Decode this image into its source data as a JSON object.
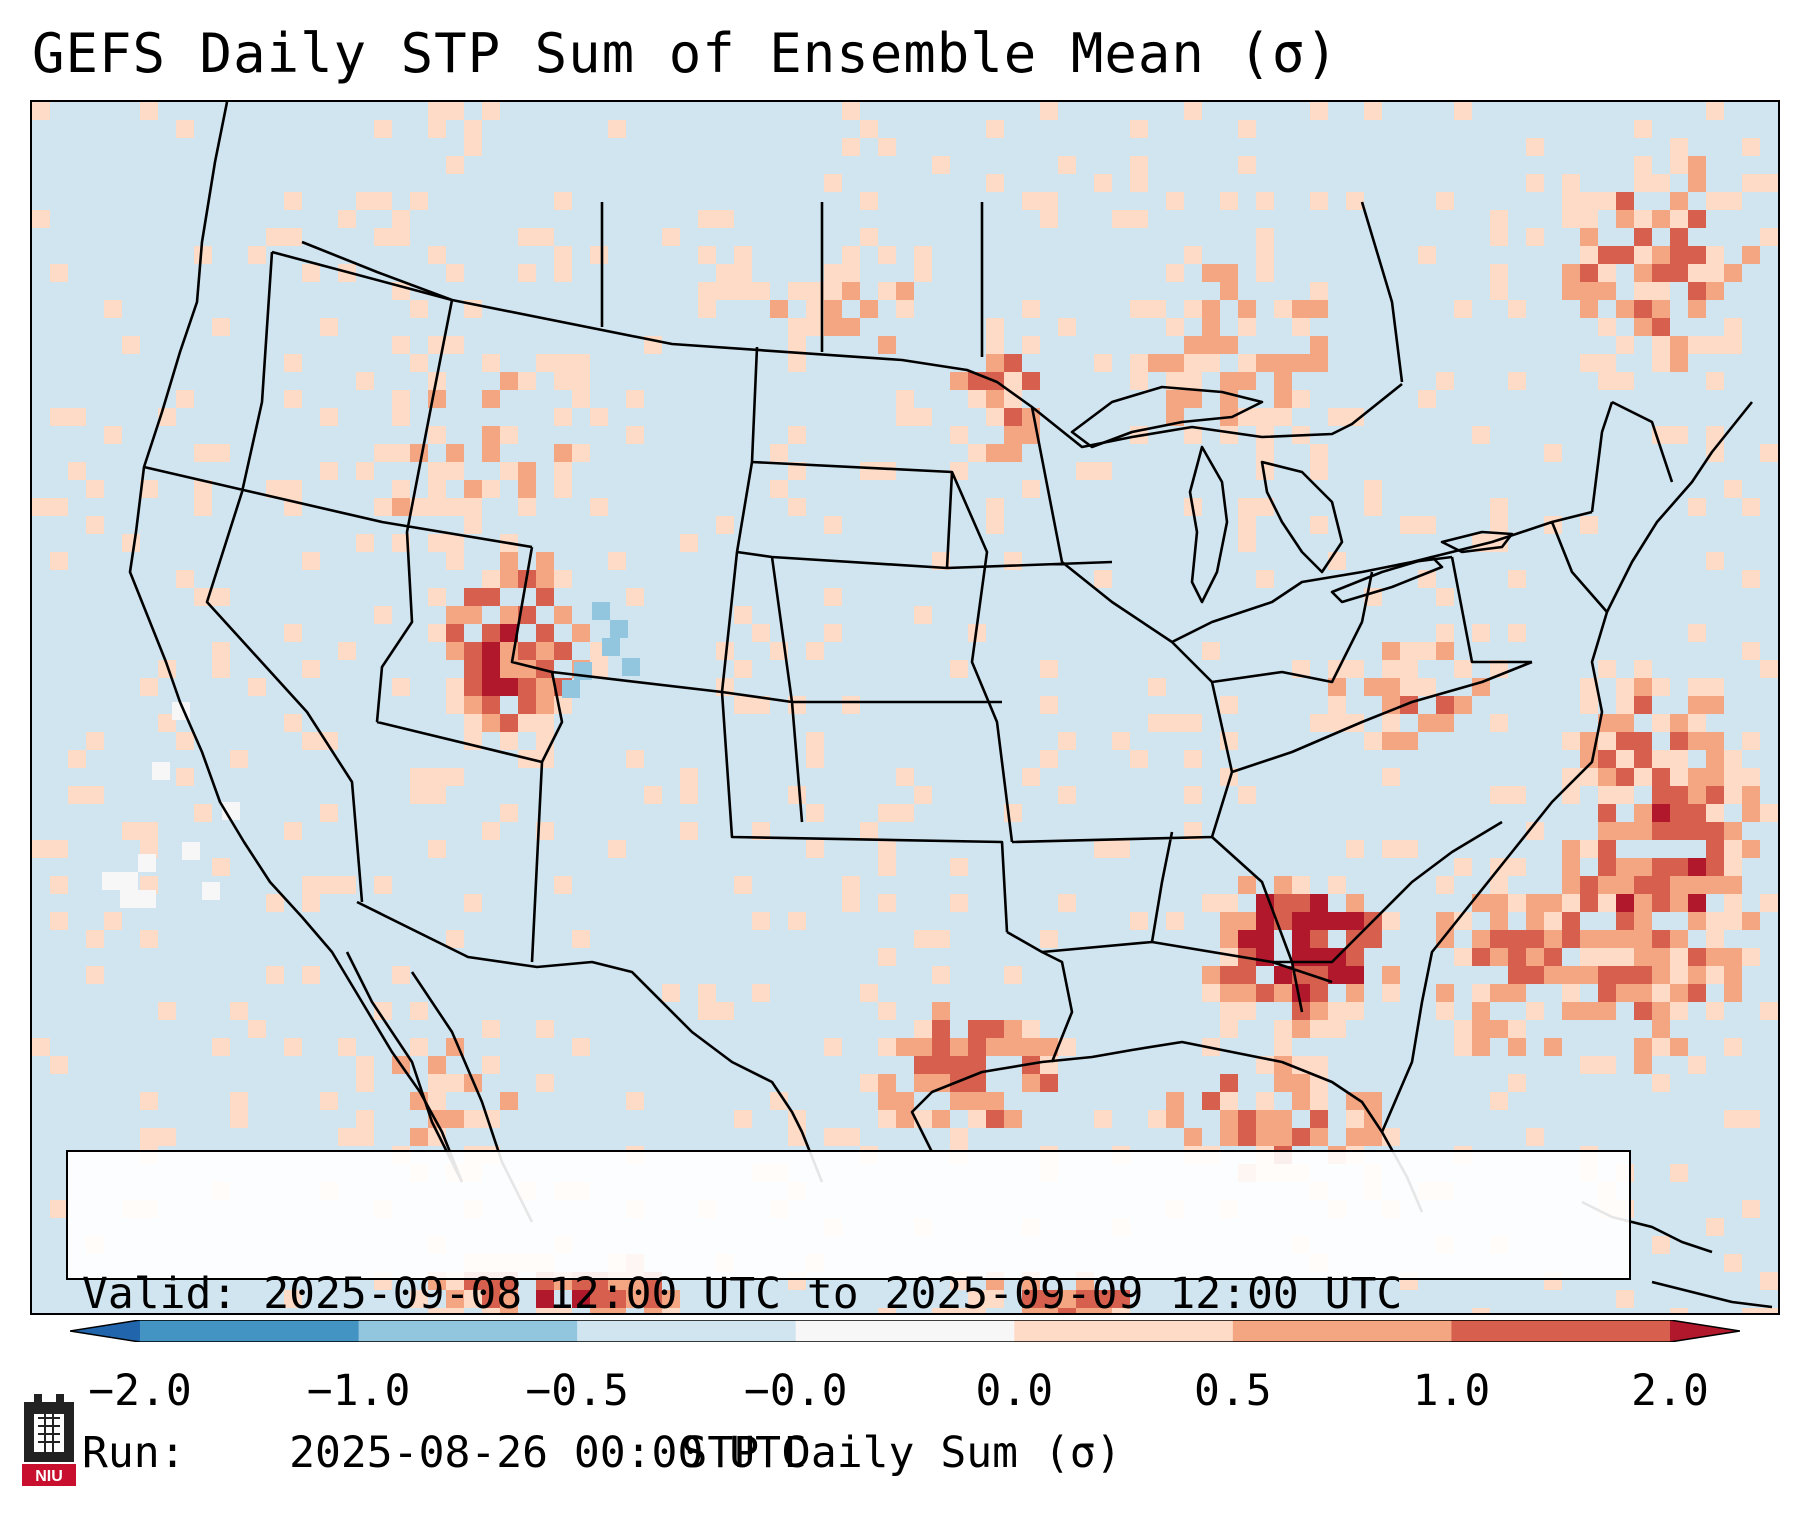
{
  "title": "GEFS Daily STP Sum of Ensemble Mean (σ)",
  "info": {
    "valid_label": "Valid:",
    "valid_value": "2025-09-08 12:00 UTC to 2025-09-09 12:00 UTC",
    "run_label": "Run:",
    "run_value": "2025-08-26 00:00 UTC"
  },
  "colorbar": {
    "label": "STP Daily Sum (σ)",
    "ticks": [
      "−2.0",
      "−1.0",
      "−0.5",
      "−0.0",
      "0.0",
      "0.5",
      "1.0",
      "2.0"
    ],
    "colors": [
      "#2166ac",
      "#4393c3",
      "#92c5de",
      "#d1e5f0",
      "#f7f7f7",
      "#fddbc7",
      "#f4a582",
      "#d6604d",
      "#b2182b"
    ]
  },
  "map": {
    "ocean_color": "#d1e5f0",
    "land_color": "#d1e5f0",
    "hotspots": [
      {
        "region": "Alabama / Georgia",
        "level": "high"
      },
      {
        "region": "Utah",
        "level": "high"
      },
      {
        "region": "Texas",
        "level": "moderate"
      },
      {
        "region": "Gulf of Mexico",
        "level": "moderate"
      },
      {
        "region": "Western Atlantic",
        "level": "moderate"
      },
      {
        "region": "Southeast US",
        "level": "moderate"
      },
      {
        "region": "Colorado",
        "level": "slightly negative"
      }
    ]
  },
  "logo": {
    "text": "NIU"
  }
}
